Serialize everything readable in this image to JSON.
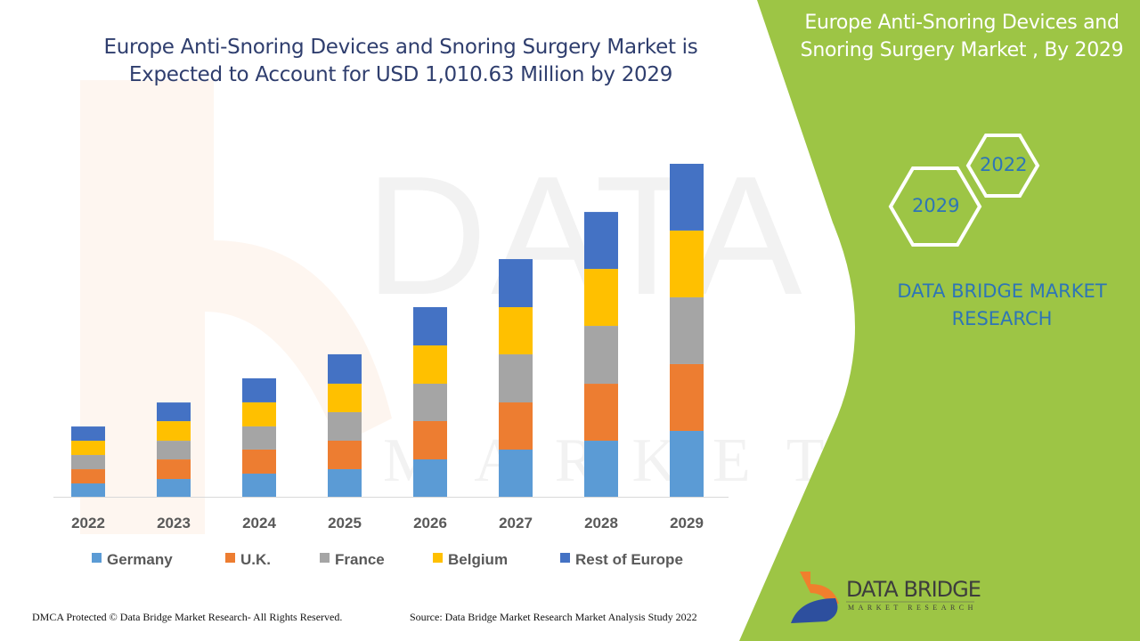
{
  "header": {
    "title": "Europe Anti-Snoring Devices and Snoring Surgery Market is Expected to Account for USD 1,010.63 Million by 2029"
  },
  "side_panel": {
    "title": "Europe Anti-Snoring Devices and Snoring Surgery Market , By 2029",
    "hex_years": [
      "2022",
      "2029"
    ],
    "brand": "DATA BRIDGE MARKET RESEARCH",
    "color": "#9dc545"
  },
  "logo": {
    "name": "DATA BRIDGE",
    "tagline": "MARKET RESEARCH"
  },
  "footer": {
    "copyright": "DMCA Protected © Data Bridge Market Research- All Rights Reserved.",
    "source": "Source: Data Bridge Market Research Market Analysis Study 2022"
  },
  "chart_data": {
    "type": "bar",
    "stacked": true,
    "title": "Europe Anti-Snoring Devices and Snoring Surgery Market is Expected to Account for USD 1,010.63 Million by 2029",
    "unit": "USD Million (estimated, no axis printed)",
    "categories": [
      "2022",
      "2023",
      "2024",
      "2025",
      "2026",
      "2027",
      "2028",
      "2029"
    ],
    "series": [
      {
        "name": "Germany",
        "color": "#5b9bd5",
        "values": [
          40.5,
          54.0,
          70.3,
          83.8,
          113.5,
          143.2,
          170.2,
          200.0
        ]
      },
      {
        "name": "U.K.",
        "color": "#ed7d31",
        "values": [
          43.2,
          59.4,
          73.0,
          86.5,
          116.2,
          143.2,
          172.9,
          202.7
        ]
      },
      {
        "name": "France",
        "color": "#a5a5a5",
        "values": [
          43.2,
          56.7,
          70.3,
          86.5,
          113.5,
          145.9,
          175.6,
          202.7
        ]
      },
      {
        "name": "Belgium",
        "color": "#ffc000",
        "values": [
          43.2,
          59.4,
          73.0,
          86.5,
          116.2,
          143.2,
          172.9,
          202.7
        ]
      },
      {
        "name": "Rest of Europe",
        "color": "#4472c4",
        "values": [
          43.2,
          56.7,
          73.0,
          89.2,
          116.2,
          145.9,
          172.9,
          202.6
        ]
      }
    ],
    "legend": "bottom",
    "grid": false,
    "ylim": [
      0,
      1010.63
    ]
  }
}
